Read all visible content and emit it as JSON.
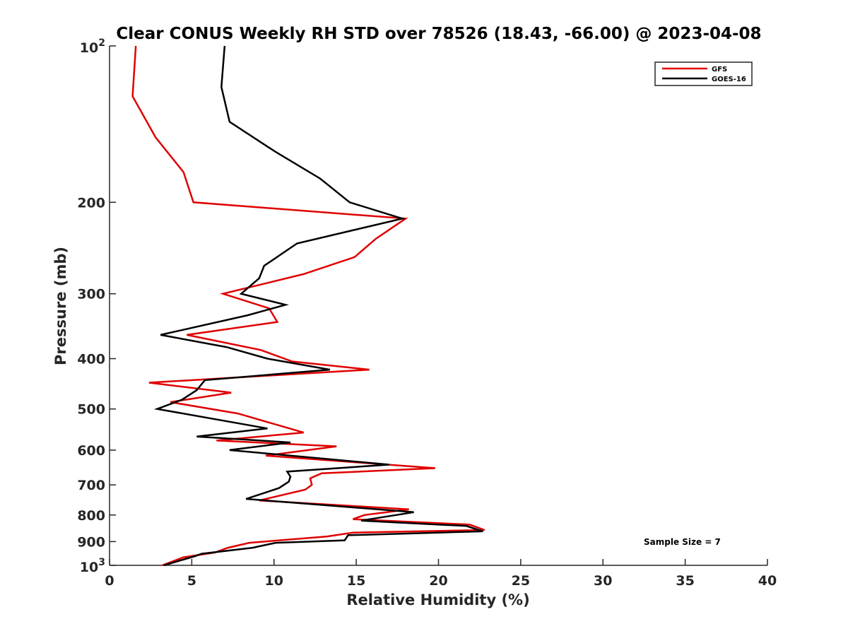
{
  "chart_data": {
    "type": "line",
    "title": "Clear CONUS Weekly RH STD over 78526 (18.43, -66.00) @ 2023-04-08",
    "xlabel": "Relative Humidity (%)",
    "ylabel": "Pressure (mb)",
    "xlim": [
      0,
      40
    ],
    "ylim": [
      100,
      1000
    ],
    "y_scale": "log",
    "y_reversed": true,
    "grid": false,
    "legend_position": "top-right",
    "x_ticks": [
      "0",
      "5",
      "10",
      "15",
      "20",
      "25",
      "30",
      "35",
      "40"
    ],
    "y_ticks": [
      {
        "value": 100,
        "base": "10",
        "exp": "2"
      },
      {
        "value": 200,
        "label": "200"
      },
      {
        "value": 300,
        "label": "300"
      },
      {
        "value": 400,
        "label": "400"
      },
      {
        "value": 500,
        "label": "500"
      },
      {
        "value": 600,
        "label": "600"
      },
      {
        "value": 700,
        "label": "700"
      },
      {
        "value": 800,
        "label": "800"
      },
      {
        "value": 900,
        "label": "900"
      },
      {
        "value": 1000,
        "base": "10",
        "exp": "3"
      }
    ],
    "annotation": "Sample Size = 7",
    "series": [
      {
        "name": "GFS",
        "color": "#e00000",
        "points": [
          [
            1.6,
            100
          ],
          [
            1.4,
            125
          ],
          [
            2.8,
            150
          ],
          [
            4.5,
            175
          ],
          [
            5.1,
            200
          ],
          [
            18.0,
            215
          ],
          [
            16.2,
            235
          ],
          [
            14.9,
            255
          ],
          [
            11.8,
            275
          ],
          [
            6.9,
            300
          ],
          [
            9.7,
            320
          ],
          [
            10.2,
            340
          ],
          [
            4.7,
            360
          ],
          [
            9.2,
            385
          ],
          [
            11.1,
            405
          ],
          [
            15.8,
            420
          ],
          [
            2.4,
            445
          ],
          [
            7.4,
            465
          ],
          [
            3.7,
            485
          ],
          [
            7.8,
            510
          ],
          [
            11.8,
            555
          ],
          [
            6.5,
            575
          ],
          [
            13.8,
            590
          ],
          [
            9.5,
            615
          ],
          [
            19.8,
            650
          ],
          [
            12.9,
            665
          ],
          [
            12.2,
            680
          ],
          [
            12.3,
            700
          ],
          [
            11.9,
            715
          ],
          [
            9.1,
            750
          ],
          [
            18.2,
            780
          ],
          [
            15.5,
            800
          ],
          [
            14.8,
            815
          ],
          [
            21.9,
            835
          ],
          [
            22.8,
            855
          ],
          [
            14.8,
            865
          ],
          [
            13.2,
            880
          ],
          [
            8.5,
            905
          ],
          [
            7.2,
            925
          ],
          [
            6.4,
            945
          ],
          [
            4.5,
            965
          ],
          [
            3.2,
            1000
          ]
        ]
      },
      {
        "name": "GOES-16",
        "color": "#000000",
        "points": [
          [
            7.0,
            100
          ],
          [
            6.8,
            120
          ],
          [
            7.3,
            140
          ],
          [
            10.1,
            160
          ],
          [
            12.8,
            180
          ],
          [
            14.6,
            200
          ],
          [
            17.8,
            215
          ],
          [
            11.4,
            240
          ],
          [
            9.4,
            265
          ],
          [
            9.1,
            280
          ],
          [
            8.0,
            300
          ],
          [
            10.7,
            315
          ],
          [
            8.4,
            330
          ],
          [
            3.1,
            360
          ],
          [
            7.1,
            380
          ],
          [
            9.6,
            400
          ],
          [
            13.4,
            420
          ],
          [
            5.8,
            440
          ],
          [
            5.3,
            460
          ],
          [
            4.4,
            480
          ],
          [
            2.9,
            500
          ],
          [
            9.6,
            545
          ],
          [
            5.3,
            565
          ],
          [
            11.0,
            580
          ],
          [
            7.3,
            600
          ],
          [
            17.0,
            640
          ],
          [
            10.8,
            660
          ],
          [
            11.0,
            675
          ],
          [
            10.9,
            690
          ],
          [
            10.3,
            710
          ],
          [
            8.3,
            745
          ],
          [
            18.5,
            790
          ],
          [
            15.3,
            820
          ],
          [
            21.7,
            840
          ],
          [
            22.7,
            860
          ],
          [
            14.5,
            875
          ],
          [
            14.3,
            895
          ],
          [
            10.1,
            905
          ],
          [
            8.7,
            925
          ],
          [
            5.6,
            950
          ],
          [
            5.2,
            960
          ],
          [
            3.3,
            1000
          ]
        ]
      }
    ]
  }
}
